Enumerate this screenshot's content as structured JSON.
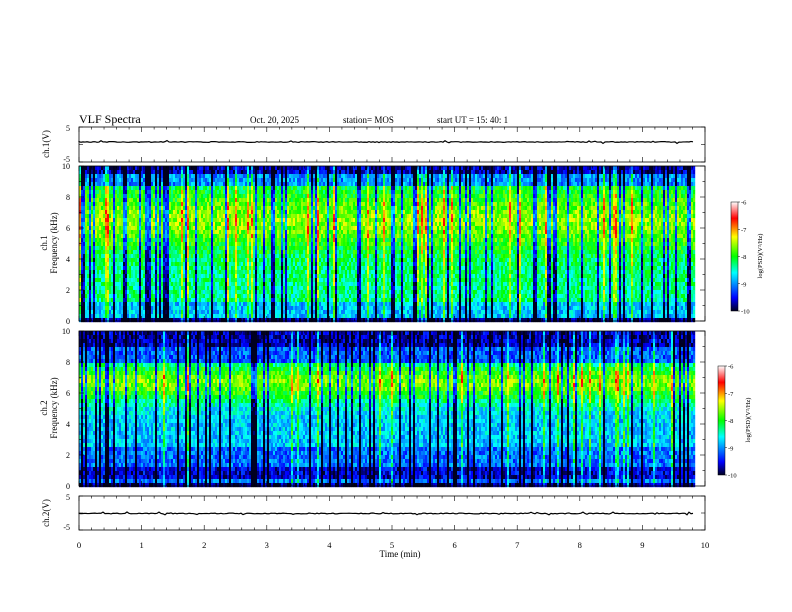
{
  "header": {
    "title": "VLF Spectra",
    "date": "Oct. 20, 2025",
    "station": "station= MOS",
    "start": "start  UT  =   15: 40: 1"
  },
  "chart_data": [
    {
      "type": "line",
      "name": "waveform-ch1",
      "ylabel": "ch.1(V)",
      "ylim": [
        -5,
        5
      ],
      "yticks": [
        "5",
        "-5"
      ],
      "xlim": [
        0,
        10
      ],
      "level": 0
    },
    {
      "type": "heatmap",
      "name": "spectrogram-ch1",
      "ylabel_top": "ch.1",
      "ylabel": "Frequency (kHz)",
      "ylim": [
        0,
        10
      ],
      "yticks": [
        "0",
        "2",
        "4",
        "6",
        "8",
        "10"
      ],
      "xlim": [
        0,
        10
      ],
      "data_end_min": 9.83,
      "colorbar": {
        "label": "log(PSD)(V²/Hz)",
        "range": [
          -10,
          -6
        ],
        "ticks": [
          "-6",
          "-7",
          "-8",
          "-9",
          "-10"
        ]
      }
    },
    {
      "type": "heatmap",
      "name": "spectrogram-ch2",
      "ylabel_top": "ch.2",
      "ylabel": "Frequency (kHz)",
      "ylim": [
        0,
        10
      ],
      "yticks": [
        "0",
        "2",
        "4",
        "6",
        "8",
        "10"
      ],
      "xlim": [
        0,
        10
      ],
      "data_end_min": 9.83,
      "colorbar": {
        "label": "log(PSD)(V²/Hz)",
        "range": [
          -10,
          -6
        ],
        "ticks": [
          "-6",
          "-7",
          "-8",
          "-9",
          "-10"
        ]
      }
    },
    {
      "type": "line",
      "name": "waveform-ch2",
      "ylabel": "ch.2(V)",
      "ylim": [
        -5,
        5
      ],
      "yticks": [
        "5",
        "-5"
      ],
      "xlim": [
        0,
        10
      ],
      "level": 0,
      "xlabel": "Time (min)",
      "xticks": [
        "0",
        "1",
        "2",
        "3",
        "4",
        "5",
        "6",
        "7",
        "8",
        "9",
        "10"
      ]
    }
  ]
}
